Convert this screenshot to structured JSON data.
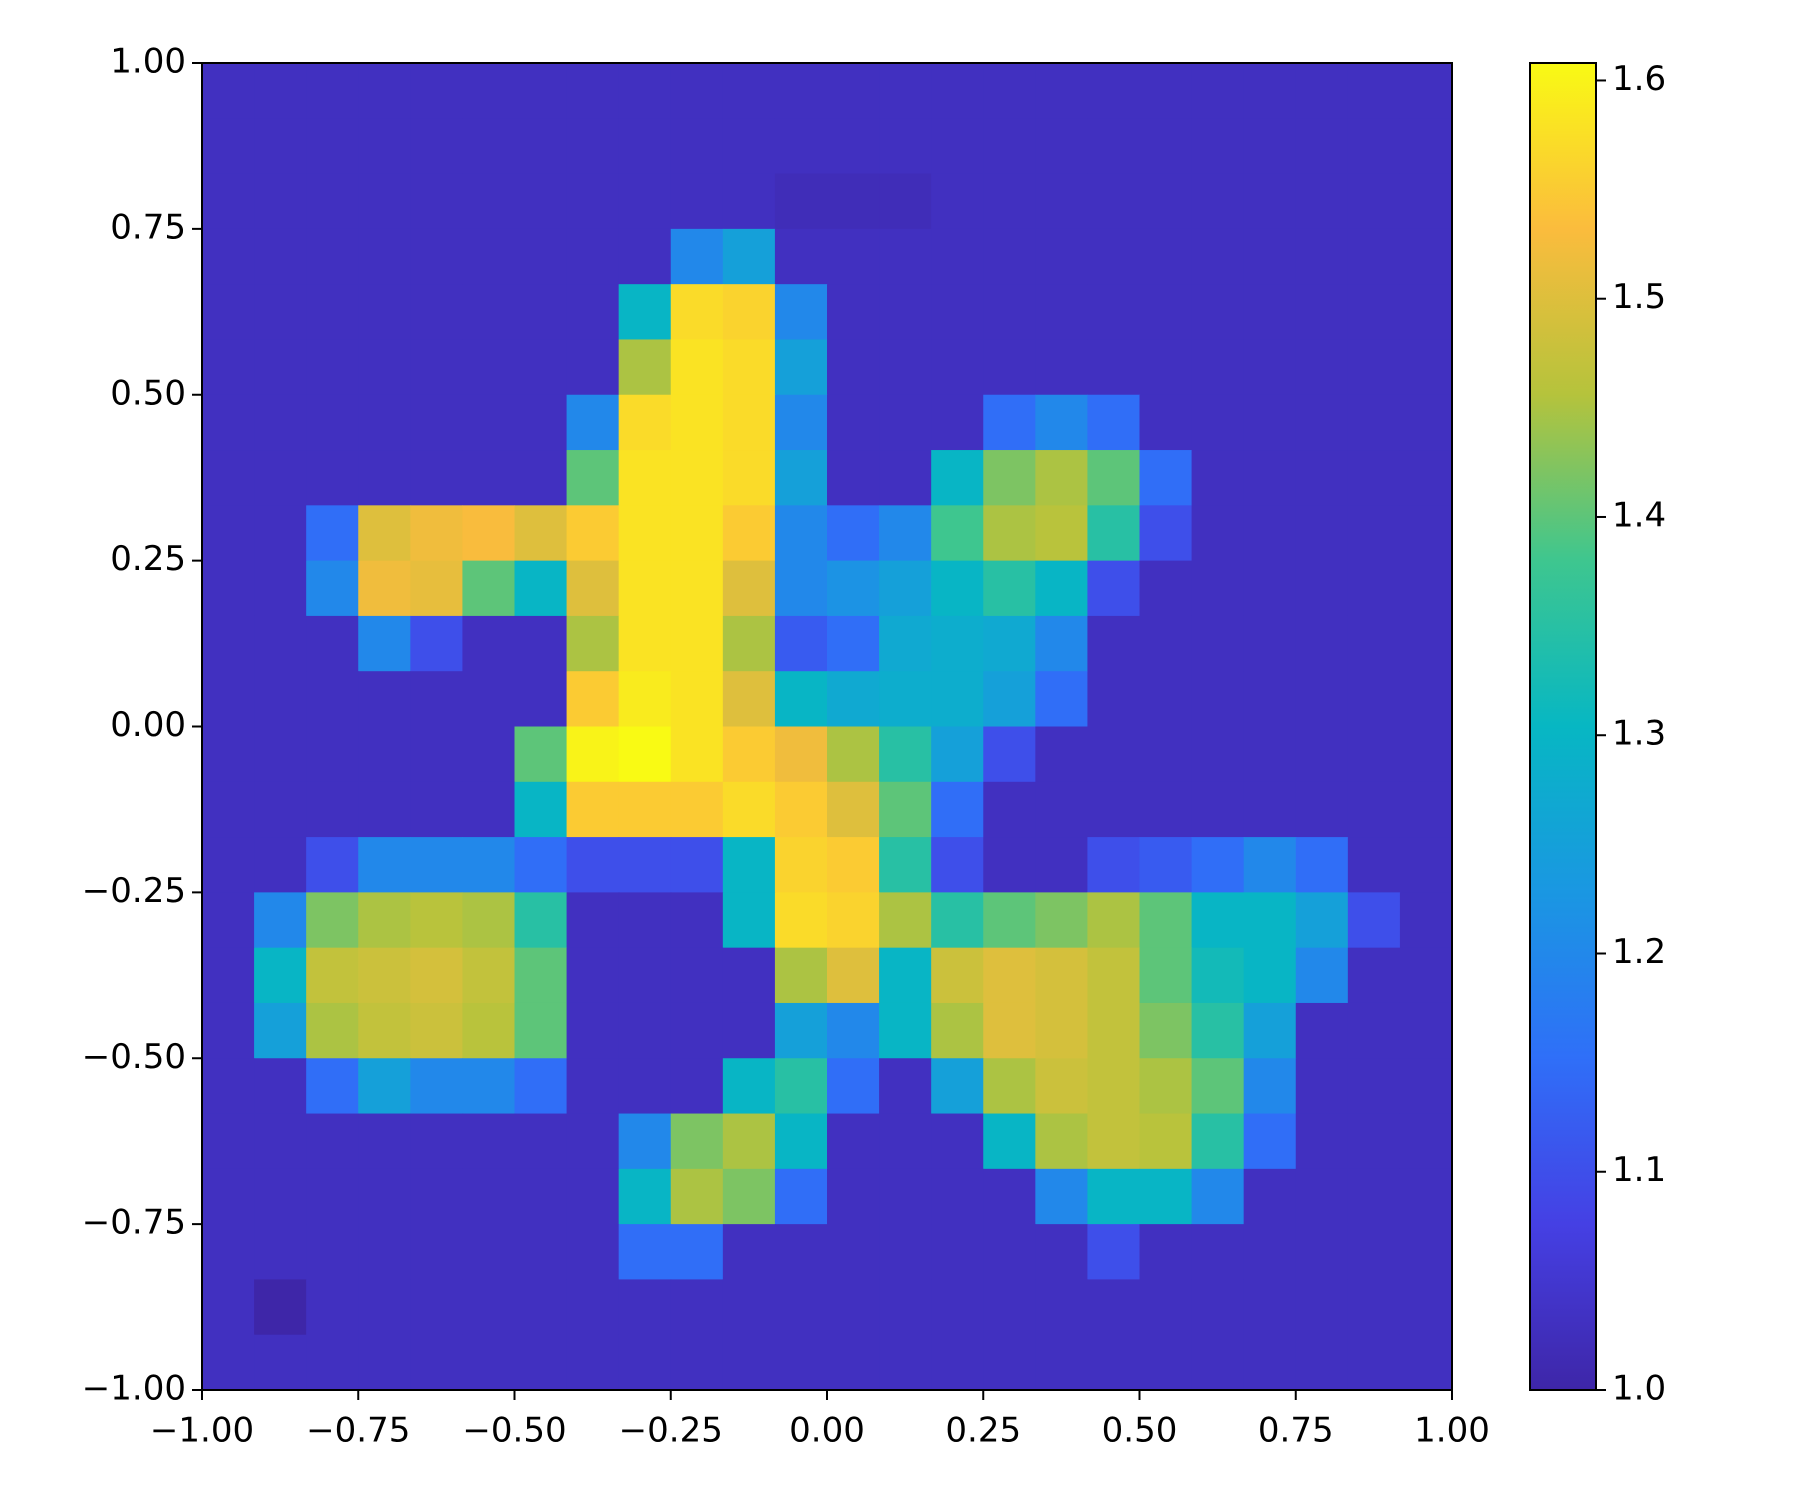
{
  "chart_data": {
    "type": "heatmap",
    "xlim": [
      -1,
      1
    ],
    "ylim": [
      -1,
      1
    ],
    "xticks": [
      {
        "value": -1,
        "label": "−1.00"
      },
      {
        "value": -0.75,
        "label": "−0.75"
      },
      {
        "value": -0.5,
        "label": "−0.50"
      },
      {
        "value": -0.25,
        "label": "−0.25"
      },
      {
        "value": 0,
        "label": "0.00"
      },
      {
        "value": 0.25,
        "label": "0.25"
      },
      {
        "value": 0.5,
        "label": "0.50"
      },
      {
        "value": 0.75,
        "label": "0.75"
      },
      {
        "value": 1,
        "label": "1.00"
      }
    ],
    "yticks": [
      {
        "value": -1,
        "label": "−1.00"
      },
      {
        "value": -0.75,
        "label": "−0.75"
      },
      {
        "value": -0.5,
        "label": "−0.50"
      },
      {
        "value": -0.25,
        "label": "−0.25"
      },
      {
        "value": 0,
        "label": "0.00"
      },
      {
        "value": 0.25,
        "label": "0.25"
      },
      {
        "value": 0.5,
        "label": "0.50"
      },
      {
        "value": 0.75,
        "label": "0.75"
      },
      {
        "value": 1,
        "label": "1.00"
      }
    ],
    "clim": [
      1.0,
      1.608
    ],
    "cticks": [
      {
        "value": 1.0,
        "label": "1.0"
      },
      1.1,
      1.2,
      1.3,
      1.4,
      1.5,
      1.6
    ],
    "colormap": [
      "#3e26a8",
      "#4540e4",
      "#2f6ff8",
      "#1a97e2",
      "#07b7c3",
      "#3ec68f",
      "#b5c33c",
      "#fbbc3d",
      "#f9fa14"
    ],
    "z": [
      [
        1.03,
        1.03,
        1.03,
        1.03,
        1.03,
        1.03,
        1.03,
        1.03,
        1.03,
        1.03,
        1.03,
        1.03,
        1.03,
        1.03,
        1.03,
        1.03,
        1.03,
        1.03,
        1.03,
        1.03,
        1.03,
        1.03,
        1.03,
        1.03
      ],
      [
        1.03,
        1.03,
        1.03,
        1.03,
        1.03,
        1.03,
        1.03,
        1.03,
        1.03,
        1.03,
        1.03,
        1.03,
        1.03,
        1.03,
        1.03,
        1.03,
        1.03,
        1.03,
        1.03,
        1.03,
        1.03,
        1.03,
        1.03,
        1.03
      ],
      [
        1.03,
        1.03,
        1.03,
        1.03,
        1.03,
        1.03,
        1.03,
        1.03,
        1.03,
        1.03,
        1.03,
        1.02,
        1.02,
        1.02,
        1.03,
        1.03,
        1.03,
        1.03,
        1.03,
        1.03,
        1.03,
        1.03,
        1.03,
        1.03
      ],
      [
        1.03,
        1.03,
        1.03,
        1.03,
        1.03,
        1.03,
        1.03,
        1.03,
        1.03,
        1.2,
        1.25,
        1.03,
        1.03,
        1.03,
        1.03,
        1.03,
        1.03,
        1.03,
        1.03,
        1.03,
        1.03,
        1.03,
        1.03,
        1.03
      ],
      [
        1.03,
        1.03,
        1.03,
        1.03,
        1.03,
        1.03,
        1.03,
        1.03,
        1.3,
        1.57,
        1.56,
        1.2,
        1.03,
        1.03,
        1.03,
        1.03,
        1.03,
        1.03,
        1.03,
        1.03,
        1.03,
        1.03,
        1.03,
        1.03
      ],
      [
        1.03,
        1.03,
        1.03,
        1.03,
        1.03,
        1.03,
        1.03,
        1.03,
        1.45,
        1.58,
        1.57,
        1.25,
        1.03,
        1.03,
        1.03,
        1.03,
        1.03,
        1.03,
        1.03,
        1.03,
        1.03,
        1.03,
        1.03,
        1.03
      ],
      [
        1.03,
        1.03,
        1.03,
        1.03,
        1.03,
        1.03,
        1.03,
        1.2,
        1.57,
        1.58,
        1.57,
        1.2,
        1.03,
        1.03,
        1.03,
        1.15,
        1.2,
        1.15,
        1.03,
        1.03,
        1.03,
        1.03,
        1.03,
        1.03
      ],
      [
        1.03,
        1.03,
        1.03,
        1.03,
        1.03,
        1.03,
        1.03,
        1.4,
        1.58,
        1.58,
        1.57,
        1.25,
        1.03,
        1.03,
        1.3,
        1.42,
        1.45,
        1.4,
        1.15,
        1.03,
        1.03,
        1.03,
        1.03,
        1.03
      ],
      [
        1.03,
        1.03,
        1.15,
        1.5,
        1.52,
        1.53,
        1.5,
        1.55,
        1.58,
        1.58,
        1.55,
        1.2,
        1.15,
        1.2,
        1.38,
        1.45,
        1.46,
        1.35,
        1.1,
        1.03,
        1.03,
        1.03,
        1.03,
        1.03
      ],
      [
        1.03,
        1.03,
        1.2,
        1.52,
        1.51,
        1.4,
        1.3,
        1.5,
        1.58,
        1.58,
        1.5,
        1.2,
        1.22,
        1.25,
        1.3,
        1.35,
        1.3,
        1.1,
        1.03,
        1.03,
        1.03,
        1.03,
        1.03,
        1.03
      ],
      [
        1.03,
        1.03,
        1.03,
        1.2,
        1.1,
        1.03,
        1.03,
        1.45,
        1.58,
        1.58,
        1.45,
        1.12,
        1.15,
        1.27,
        1.28,
        1.27,
        1.2,
        1.03,
        1.03,
        1.03,
        1.03,
        1.03,
        1.03,
        1.03
      ],
      [
        1.03,
        1.03,
        1.03,
        1.03,
        1.03,
        1.03,
        1.03,
        1.55,
        1.59,
        1.58,
        1.5,
        1.3,
        1.27,
        1.28,
        1.28,
        1.25,
        1.15,
        1.03,
        1.03,
        1.03,
        1.03,
        1.03,
        1.03,
        1.03
      ],
      [
        1.03,
        1.03,
        1.03,
        1.03,
        1.03,
        1.03,
        1.4,
        1.6,
        1.61,
        1.58,
        1.55,
        1.52,
        1.45,
        1.35,
        1.25,
        1.1,
        1.03,
        1.03,
        1.03,
        1.03,
        1.03,
        1.03,
        1.03,
        1.03
      ],
      [
        1.03,
        1.03,
        1.03,
        1.03,
        1.03,
        1.03,
        1.3,
        1.55,
        1.55,
        1.55,
        1.57,
        1.55,
        1.5,
        1.4,
        1.15,
        1.03,
        1.03,
        1.03,
        1.03,
        1.03,
        1.03,
        1.03,
        1.03,
        1.03
      ],
      [
        1.03,
        1.03,
        1.1,
        1.2,
        1.2,
        1.2,
        1.15,
        1.1,
        1.1,
        1.1,
        1.3,
        1.56,
        1.55,
        1.35,
        1.1,
        1.03,
        1.03,
        1.1,
        1.12,
        1.15,
        1.2,
        1.15,
        1.03,
        1.03
      ],
      [
        1.03,
        1.2,
        1.42,
        1.45,
        1.46,
        1.45,
        1.35,
        1.03,
        1.03,
        1.03,
        1.3,
        1.57,
        1.56,
        1.45,
        1.35,
        1.4,
        1.42,
        1.45,
        1.4,
        1.3,
        1.3,
        1.25,
        1.1,
        1.03
      ],
      [
        1.03,
        1.3,
        1.47,
        1.48,
        1.49,
        1.47,
        1.4,
        1.03,
        1.03,
        1.03,
        1.03,
        1.45,
        1.5,
        1.3,
        1.48,
        1.5,
        1.49,
        1.47,
        1.4,
        1.32,
        1.3,
        1.2,
        1.03,
        1.03
      ],
      [
        1.03,
        1.25,
        1.45,
        1.47,
        1.48,
        1.46,
        1.4,
        1.03,
        1.03,
        1.03,
        1.03,
        1.25,
        1.2,
        1.3,
        1.45,
        1.5,
        1.49,
        1.47,
        1.42,
        1.35,
        1.25,
        1.03,
        1.03,
        1.03
      ],
      [
        1.03,
        1.03,
        1.15,
        1.25,
        1.2,
        1.2,
        1.15,
        1.03,
        1.03,
        1.03,
        1.3,
        1.35,
        1.15,
        1.03,
        1.25,
        1.45,
        1.48,
        1.47,
        1.45,
        1.4,
        1.2,
        1.03,
        1.03,
        1.03
      ],
      [
        1.03,
        1.03,
        1.03,
        1.03,
        1.03,
        1.03,
        1.03,
        1.03,
        1.2,
        1.42,
        1.45,
        1.3,
        1.03,
        1.03,
        1.03,
        1.3,
        1.45,
        1.47,
        1.46,
        1.35,
        1.15,
        1.03,
        1.03,
        1.03
      ],
      [
        1.03,
        1.03,
        1.03,
        1.03,
        1.03,
        1.03,
        1.03,
        1.03,
        1.3,
        1.45,
        1.42,
        1.15,
        1.03,
        1.03,
        1.03,
        1.03,
        1.2,
        1.3,
        1.3,
        1.2,
        1.03,
        1.03,
        1.03,
        1.03
      ],
      [
        1.03,
        1.03,
        1.03,
        1.03,
        1.03,
        1.03,
        1.03,
        1.03,
        1.15,
        1.15,
        1.03,
        1.03,
        1.03,
        1.03,
        1.03,
        1.03,
        1.03,
        1.1,
        1.03,
        1.03,
        1.03,
        1.03,
        1.03,
        1.03
      ],
      [
        1.03,
        1.0,
        1.03,
        1.03,
        1.03,
        1.03,
        1.03,
        1.03,
        1.03,
        1.03,
        1.03,
        1.03,
        1.03,
        1.03,
        1.03,
        1.03,
        1.03,
        1.03,
        1.03,
        1.03,
        1.03,
        1.03,
        1.03,
        1.03
      ],
      [
        1.03,
        1.03,
        1.03,
        1.03,
        1.03,
        1.03,
        1.03,
        1.03,
        1.03,
        1.03,
        1.03,
        1.03,
        1.03,
        1.03,
        1.03,
        1.03,
        1.03,
        1.03,
        1.03,
        1.03,
        1.03,
        1.03,
        1.03,
        1.03
      ]
    ]
  }
}
